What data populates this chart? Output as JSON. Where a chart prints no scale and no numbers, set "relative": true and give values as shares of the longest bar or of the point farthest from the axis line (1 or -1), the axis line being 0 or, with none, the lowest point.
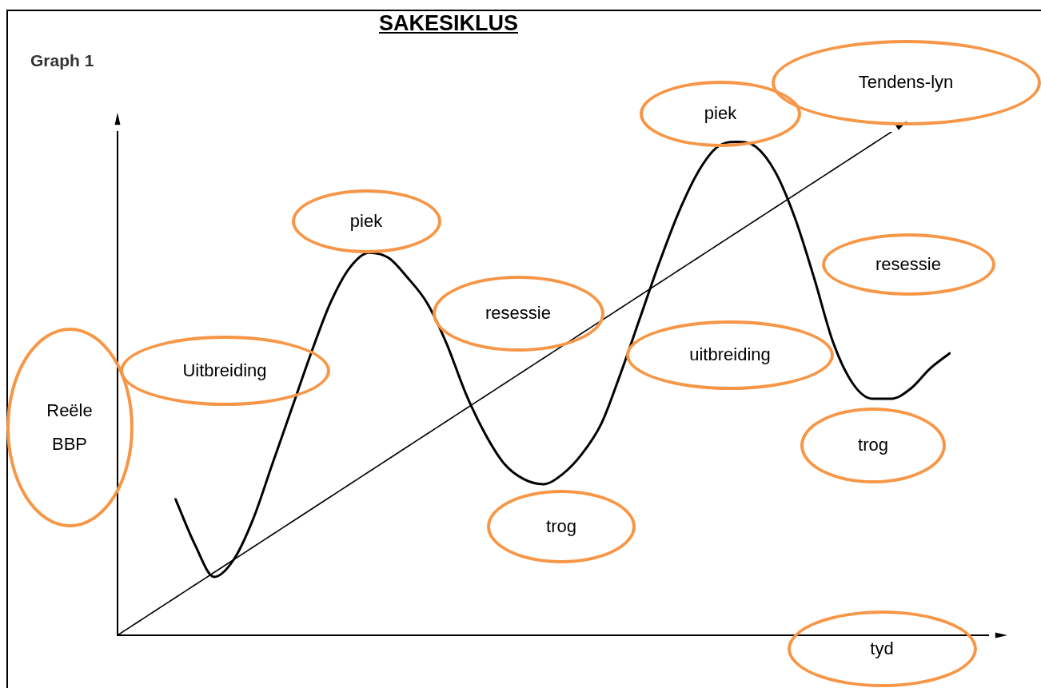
{
  "chart_data": {
    "type": "line",
    "title": "SAKESIKLUS",
    "xlabel": "tyd",
    "ylabel": "Reële BBP",
    "relative": true,
    "legend": false,
    "marker": "none",
    "categories": [
      null,
      null,
      null,
      null,
      null,
      null,
      null,
      null,
      null,
      null,
      null,
      null,
      null,
      null,
      null,
      null,
      null,
      null,
      null,
      null,
      null,
      null,
      null,
      null,
      null,
      null,
      null,
      null,
      null,
      null,
      null,
      null,
      null,
      null,
      null,
      null,
      null,
      null,
      null,
      null,
      null,
      null,
      null,
      null,
      null,
      null
    ],
    "series": [
      {
        "color": "#000000",
        "values": [
          null,
          null,
          null,
          0.27,
          0.18,
          0.116,
          0.15,
          0.23,
          0.34,
          0.45,
          0.56,
          0.66,
          0.73,
          0.76,
          0.75,
          0.71,
          0.66,
          0.58,
          0.48,
          0.4,
          0.34,
          0.31,
          0.3,
          0.32,
          0.36,
          0.42,
          0.52,
          0.63,
          0.74,
          0.84,
          0.92,
          0.97,
          0.98,
          0.97,
          0.92,
          0.83,
          0.71,
          0.58,
          0.5,
          0.47,
          0.47,
          0.49,
          0.53,
          0.56,
          null,
          null
        ]
      },
      {
        "name": "Tendens-lyn",
        "color": "#000000",
        "values": [
          0,
          0.025,
          0.05,
          0.075,
          0.1,
          0.125,
          0.15,
          0.175,
          0.2,
          0.225,
          0.25,
          0.275,
          0.3,
          0.325,
          0.35,
          0.375,
          0.4,
          0.425,
          0.45,
          0.475,
          0.5,
          0.525,
          0.55,
          0.575,
          0.6,
          0.625,
          0.65,
          0.675,
          0.7,
          0.725,
          0.75,
          0.775,
          0.8,
          0.825,
          0.85,
          0.875,
          0.9,
          0.925,
          0.95,
          0.975,
          1,
          null,
          null,
          null,
          null,
          null
        ]
      }
    ],
    "annotations": [
      "Graph 1",
      "Uitbreiding",
      "piek",
      "resessie",
      "trog",
      "uitbreiding",
      "piek",
      "resessie",
      "trog"
    ]
  }
}
